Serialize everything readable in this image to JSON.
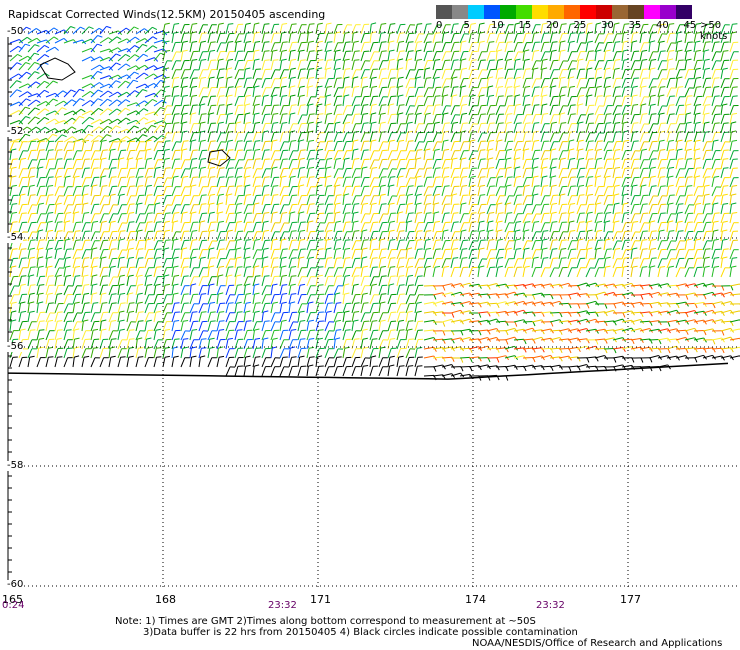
{
  "title": "Rapidscat Corrected Winds(12.5KM) 20150405 ascending",
  "legend": {
    "labels": [
      "0",
      "5",
      "10",
      "15",
      "20",
      "25",
      "30",
      "35",
      "40",
      "45"
    ],
    "unit_label": ">50 knots",
    "colors": [
      "#555555",
      "#888888",
      "#00ccff",
      "#0055ff",
      "#00aa00",
      "#44dd00",
      "#ffdd00",
      "#ffaa00",
      "#ff6600",
      "#ff0000",
      "#cc0000",
      "#996633",
      "#664422",
      "#ff00ff",
      "#9900cc",
      "#330066"
    ]
  },
  "lat_labels": [
    "-50",
    "-52",
    "-54",
    "-56",
    "-58",
    "-60"
  ],
  "lon_labels": [
    "165",
    "168",
    "171",
    "174",
    "177"
  ],
  "time_labels": [
    "0:24",
    "23:32",
    "23:32"
  ],
  "notes": {
    "line1": "Note: 1) Times are GMT 2)Times along bottom correspond to measurement at ~50S",
    "line2": "3)Data buffer is 22 hrs from 20150405 4) Black circles indicate possible contamination",
    "line3": "NOAA/NESDIS/Office of Research and Applications"
  }
}
